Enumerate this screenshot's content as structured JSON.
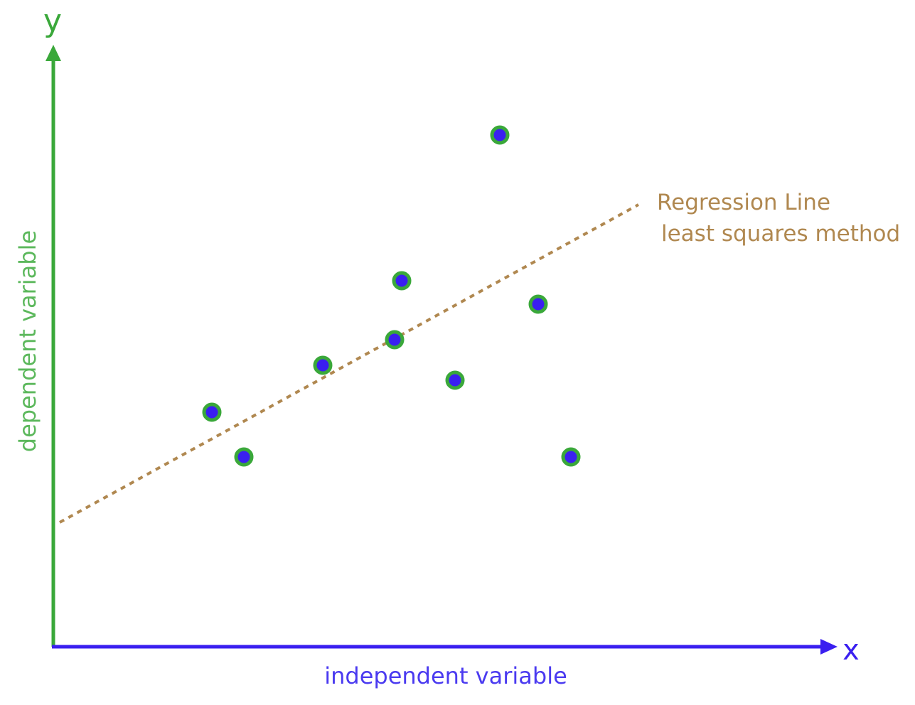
{
  "diagram": {
    "x_axis_letter": "x",
    "y_axis_letter": "y",
    "x_axis_label": "independent variable",
    "y_axis_label": "dependent variable",
    "regression_label_line1": "Regression Line",
    "regression_label_line2": "least squares method",
    "colors": {
      "x_axis": "#3a1ff0",
      "y_axis": "#3aa83a",
      "regression_line": "#b08850",
      "point_ring": "#3aa83a",
      "point_core": "#3a1ff0"
    },
    "points_note_icon": "data-point-icon"
  }
}
